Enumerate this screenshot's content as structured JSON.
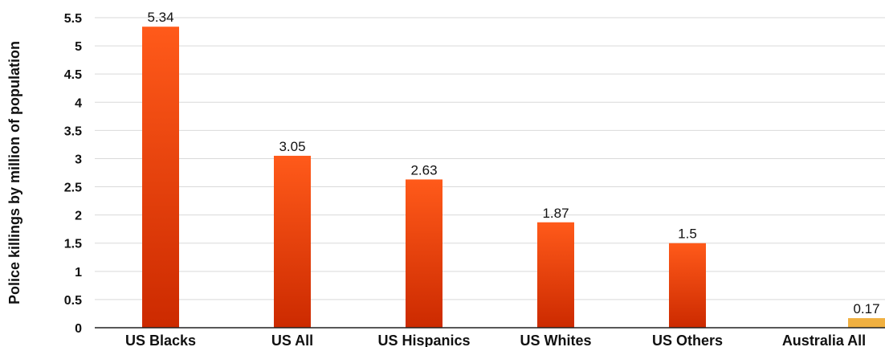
{
  "chart_data": {
    "type": "bar",
    "categories": [
      "US Blacks",
      "US All",
      "US Hispanics",
      "US Whites",
      "US Others",
      "Australia All"
    ],
    "values": [
      5.34,
      3.05,
      2.63,
      1.87,
      1.5,
      0.17
    ],
    "data_labels": [
      "5.34",
      "3.05",
      "2.63",
      "1.87",
      "1.5",
      "0.17"
    ],
    "title": "",
    "xlabel": "",
    "ylabel": "Police killings by million of population",
    "ylim": [
      0,
      5.5
    ],
    "yticks": [
      "0",
      "0.5",
      "1",
      "1.5",
      "2",
      "2.5",
      "3",
      "3.5",
      "4",
      "4.5",
      "5",
      "5.5"
    ],
    "grid": true,
    "legend": "none",
    "colors": {
      "us_bar_top": "#ff5a1a",
      "us_bar_bottom": "#cc2a00",
      "australia_bar": "#f0b040"
    }
  }
}
